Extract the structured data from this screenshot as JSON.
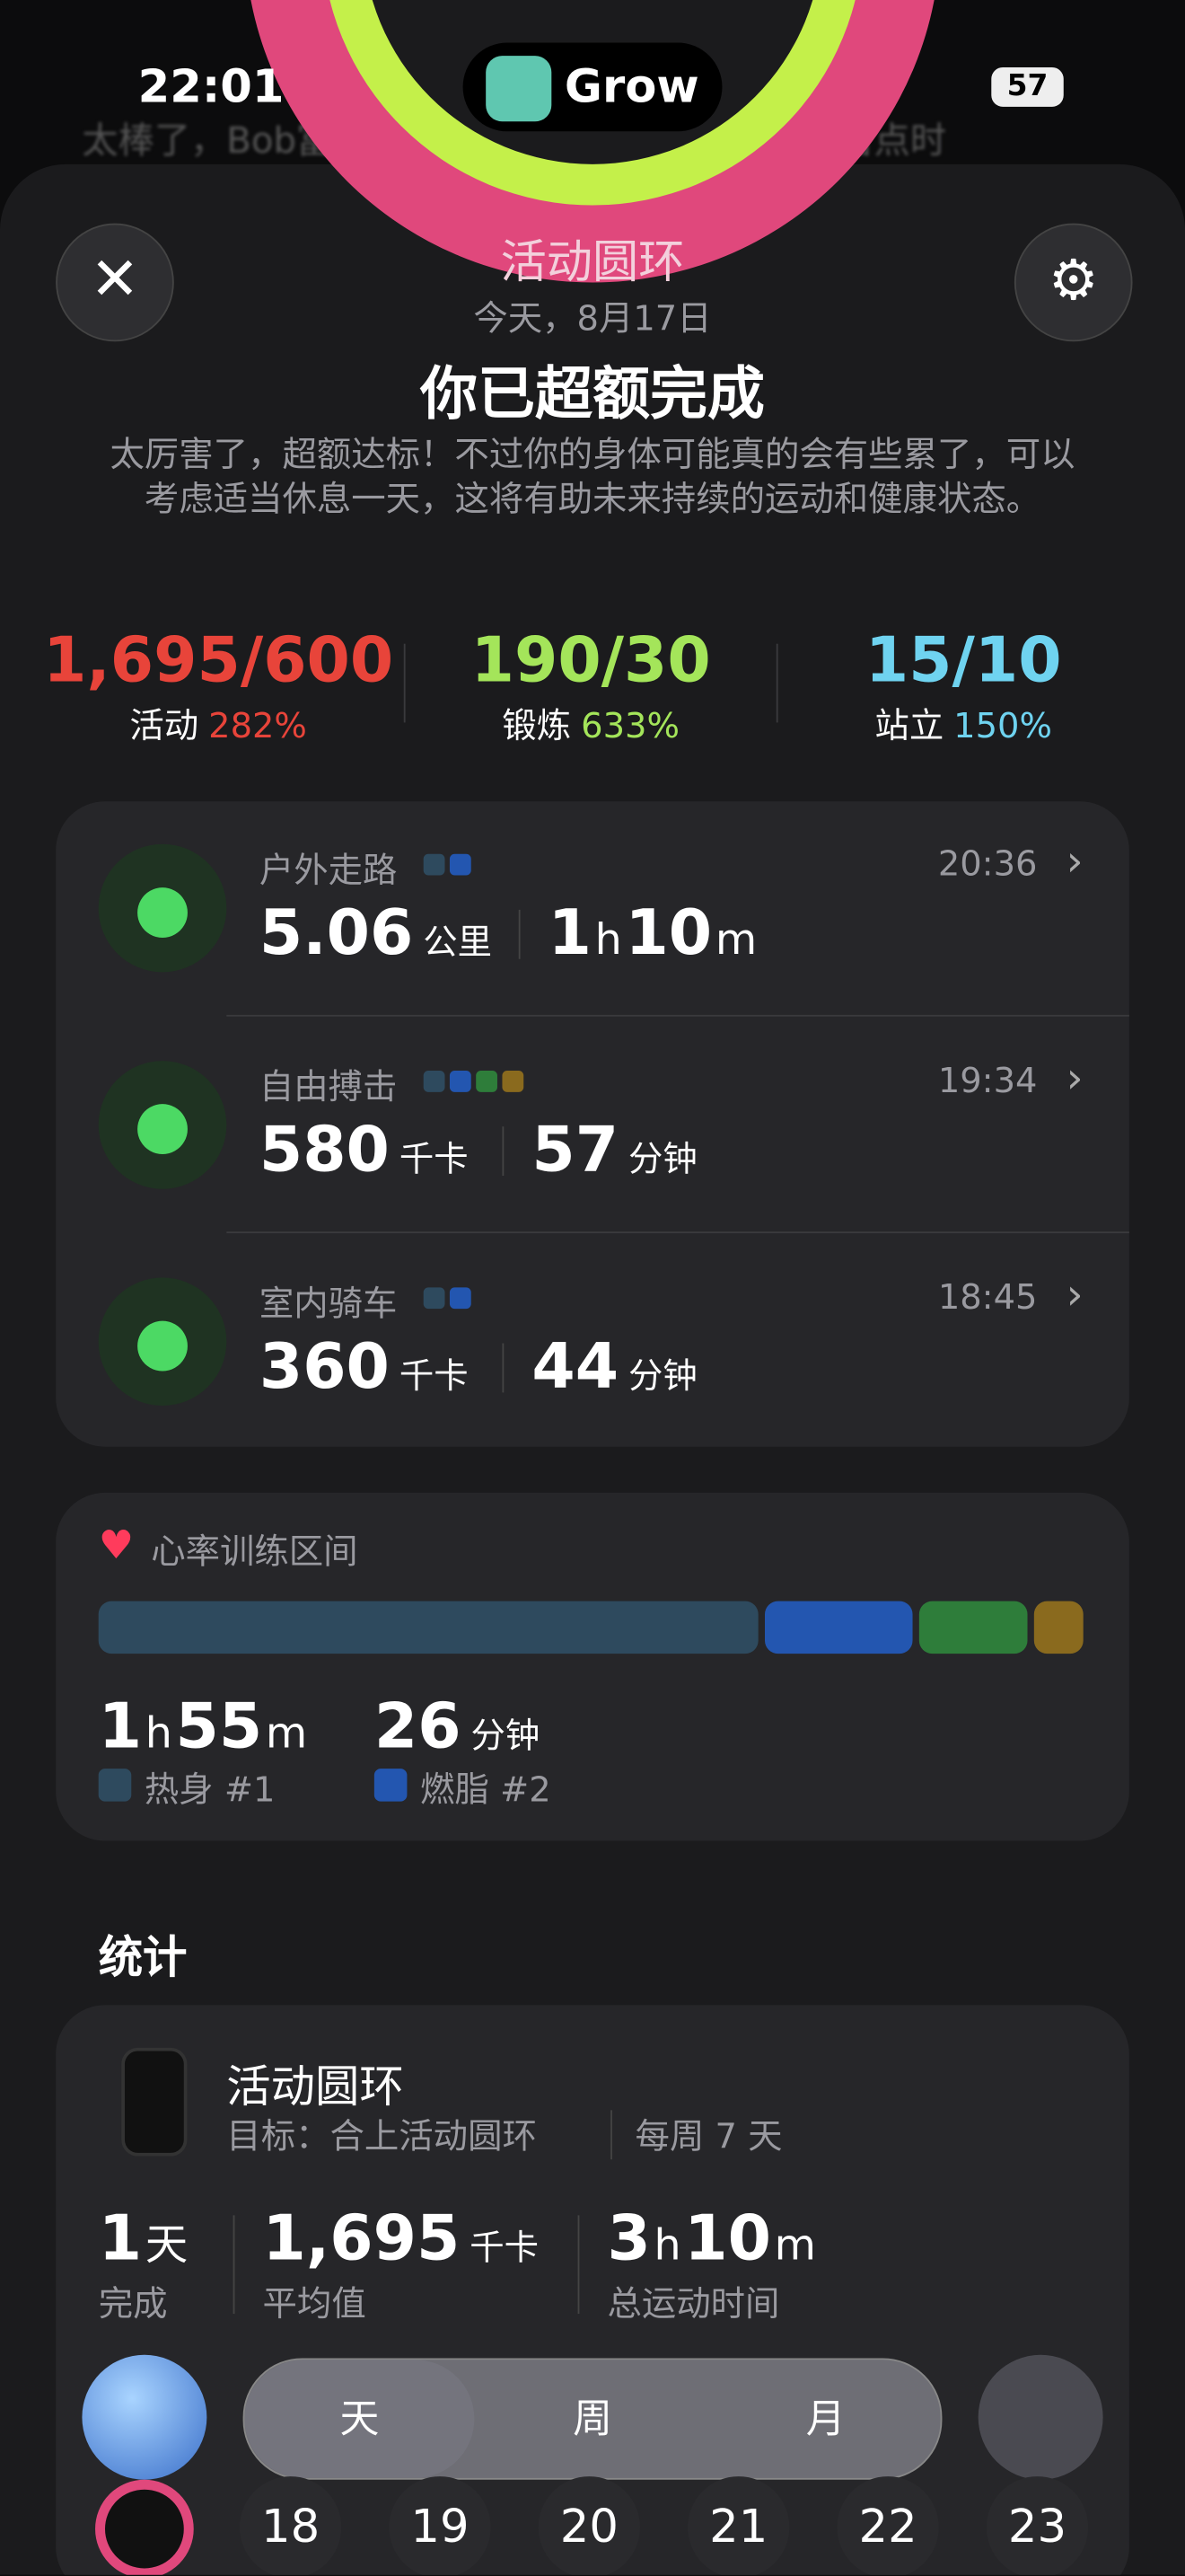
{
  "status": {
    "time": "22:01",
    "app": "Grow",
    "battery": "57"
  },
  "banner": "太棒了，Bob富菜！你的状态处于极其活跃。请留点时",
  "header": {
    "ring_label": "活动圆环",
    "date": "今天，8月17日",
    "title": "你已超额完成",
    "description": "太厉害了，超额达标！不过你的身体可能真的会有些累了，可以考虑适当休息一天，这将有助未来持续的运动和健康状态。"
  },
  "goals": [
    {
      "value": "1,695/600",
      "label": "活动",
      "percent": "282%",
      "color": "#e8443a"
    },
    {
      "value": "190/30",
      "label": "锻炼",
      "percent": "633%",
      "color": "#a4e55a"
    },
    {
      "value": "15/10",
      "label": "站立",
      "percent": "150%",
      "color": "#6fd3f0"
    }
  ],
  "workouts": [
    {
      "name": "户外走路",
      "time": "20:36",
      "dots": [
        "#2e4a5e",
        "#2356b0"
      ],
      "metrics": [
        [
          {
            "n": "5.06",
            "u": "公里"
          }
        ],
        [
          {
            "n": "1",
            "u": "h"
          },
          {
            "n": "10",
            "u": "m"
          }
        ]
      ]
    },
    {
      "name": "自由搏击",
      "time": "19:34",
      "dots": [
        "#2e4a5e",
        "#2356b0",
        "#2e7d3a",
        "#8a6a1e"
      ],
      "metrics": [
        [
          {
            "n": "580",
            "u": "千卡"
          }
        ],
        [
          {
            "n": "57",
            "u": "分钟"
          }
        ]
      ]
    },
    {
      "name": "室内骑车",
      "time": "18:45",
      "dots": [
        "#2e4a5e",
        "#2356b0"
      ],
      "metrics": [
        [
          {
            "n": "360",
            "u": "千卡"
          }
        ],
        [
          {
            "n": "44",
            "u": "分钟"
          }
        ]
      ]
    }
  ],
  "heart": {
    "title": "心率训练区间",
    "segments": [
      {
        "color": "#2e4a5e",
        "share": 405
      },
      {
        "color": "#2356b0",
        "share": 90
      },
      {
        "color": "#2e7d3a",
        "share": 67
      },
      {
        "color": "#8a6a1e",
        "share": 30
      }
    ],
    "zones": [
      {
        "parts": [
          {
            "n": "1",
            "u": "h"
          },
          {
            "n": "55",
            "u": "m"
          }
        ],
        "label": "热身 #1",
        "color": "#2e4a5e"
      },
      {
        "parts": [
          {
            "n": "26",
            "u": "分钟"
          }
        ],
        "label": "燃脂 #2",
        "color": "#2356b0"
      }
    ]
  },
  "stats": {
    "title": "统计",
    "card_title": "活动圆环",
    "goal": "目标：合上活动圆环",
    "freq": "每周 7 天",
    "metrics": [
      {
        "parts": [
          {
            "n": "1",
            "u": "天"
          }
        ],
        "label": "完成"
      },
      {
        "parts": [
          {
            "n": "1,695",
            "u": "千卡"
          }
        ],
        "label": "平均值"
      },
      {
        "parts": [
          {
            "n": "3",
            "u": "h"
          },
          {
            "n": "10",
            "u": "m"
          }
        ],
        "label": "总运动时间"
      }
    ]
  },
  "tabs": [
    "天",
    "周",
    "月"
  ],
  "dates": [
    "18",
    "19",
    "20",
    "21",
    "22",
    "23"
  ]
}
